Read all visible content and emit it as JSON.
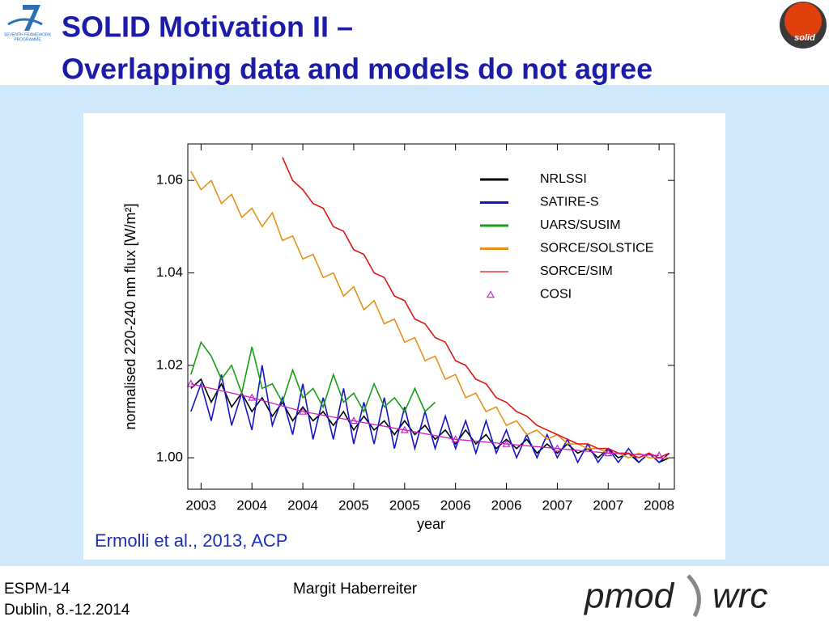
{
  "slide": {
    "title_lines": [
      "SOLID Motivation II –",
      "Overlapping data and models do not agree"
    ],
    "fp7_logo_text": [
      "SEVENTH FRAMEWORK",
      "PROGRAMME"
    ],
    "solid_logo_text": "solid",
    "citation": "Ermolli et al., 2013, ACP",
    "footer": {
      "left": [
        "ESPM-14",
        "Dublin, 8.-12.2014"
      ],
      "center": "Margit Haberreiter",
      "logo": [
        "pmod",
        "wrc"
      ]
    }
  },
  "chart_data": {
    "type": "line",
    "xlabel": "year",
    "ylabel": "normalised 220-240 nm flux [W/m²]",
    "xlim": [
      2002.87,
      2007.65
    ],
    "ylim": [
      0.9932,
      1.0679
    ],
    "xticks": [
      {
        "value": 2003.0,
        "label": "2003"
      },
      {
        "value": 2003.5,
        "label": "2004"
      },
      {
        "value": 2004.0,
        "label": "2004"
      },
      {
        "value": 2004.5,
        "label": "2005"
      },
      {
        "value": 2005.0,
        "label": "2005"
      },
      {
        "value": 2005.5,
        "label": "2006"
      },
      {
        "value": 2006.0,
        "label": "2006"
      },
      {
        "value": 2006.5,
        "label": "2007"
      },
      {
        "value": 2007.0,
        "label": "2007"
      },
      {
        "value": 2007.5,
        "label": "2008"
      }
    ],
    "yticks": [
      {
        "value": 1.0,
        "label": "1.00"
      },
      {
        "value": 1.02,
        "label": "1.02"
      },
      {
        "value": 1.04,
        "label": "1.04"
      },
      {
        "value": 1.06,
        "label": "1.06"
      }
    ],
    "legend": "upper right",
    "x": [
      2002.9,
      2003.0,
      2003.1,
      2003.2,
      2003.3,
      2003.4,
      2003.5,
      2003.6,
      2003.7,
      2003.8,
      2003.9,
      2004.0,
      2004.1,
      2004.2,
      2004.3,
      2004.4,
      2004.5,
      2004.6,
      2004.7,
      2004.8,
      2004.9,
      2005.0,
      2005.1,
      2005.2,
      2005.3,
      2005.4,
      2005.5,
      2005.6,
      2005.7,
      2005.8,
      2005.9,
      2006.0,
      2006.1,
      2006.2,
      2006.3,
      2006.4,
      2006.5,
      2006.6,
      2006.7,
      2006.8,
      2006.9,
      2007.0,
      2007.1,
      2007.2,
      2007.3,
      2007.4,
      2007.5,
      2007.6
    ],
    "series": [
      {
        "name": "NRLSSI",
        "color": "#000000",
        "values": [
          1.015,
          1.017,
          1.012,
          1.016,
          1.011,
          1.014,
          1.01,
          1.013,
          1.009,
          1.012,
          1.008,
          1.011,
          1.008,
          1.01,
          1.007,
          1.01,
          1.006,
          1.009,
          1.006,
          1.008,
          1.005,
          1.008,
          1.005,
          1.007,
          1.004,
          1.006,
          1.003,
          1.006,
          1.003,
          1.005,
          1.002,
          1.004,
          1.002,
          1.004,
          1.001,
          1.003,
          1.001,
          1.003,
          1.001,
          1.002,
          1.0,
          1.002,
          1.0,
          1.001,
          0.999,
          1.001,
          0.999,
          1.0
        ]
      },
      {
        "name": "SATIRE-S",
        "color": "#1414c8",
        "values": [
          1.01,
          1.016,
          1.008,
          1.018,
          1.007,
          1.014,
          1.006,
          1.02,
          1.007,
          1.013,
          1.005,
          1.016,
          1.004,
          1.013,
          1.004,
          1.015,
          1.003,
          1.012,
          1.003,
          1.013,
          1.002,
          1.011,
          1.002,
          1.01,
          1.002,
          1.009,
          1.002,
          1.008,
          1.001,
          1.008,
          1.001,
          1.006,
          1.0,
          1.005,
          1.0,
          1.005,
          1.0,
          1.004,
          0.999,
          1.003,
          0.999,
          1.002,
          0.999,
          1.002,
          0.999,
          1.001,
          0.999,
          1.001
        ]
      },
      {
        "name": "UARS/SUSIM",
        "color": "#16a016",
        "values": [
          1.018,
          1.025,
          1.022,
          1.017,
          1.02,
          1.014,
          1.024,
          1.015,
          1.016,
          1.012,
          1.019,
          1.013,
          1.015,
          1.011,
          1.018,
          1.012,
          1.014,
          1.01,
          1.016,
          1.011,
          1.013,
          1.01,
          1.015,
          1.01,
          1.012,
          null,
          null,
          null,
          null,
          null,
          null,
          null,
          null,
          null,
          null,
          null,
          null,
          null,
          null,
          null,
          null,
          null,
          null,
          null,
          null,
          null,
          null,
          null
        ]
      },
      {
        "name": "SORCE/SOLSTICE",
        "color": "#e8901a",
        "values": [
          1.062,
          1.058,
          1.06,
          1.055,
          1.057,
          1.052,
          1.054,
          1.05,
          1.053,
          1.047,
          1.048,
          1.043,
          1.044,
          1.039,
          1.04,
          1.035,
          1.037,
          1.032,
          1.034,
          1.029,
          1.03,
          1.025,
          1.026,
          1.021,
          1.022,
          1.017,
          1.018,
          1.013,
          1.014,
          1.01,
          1.011,
          1.007,
          1.008,
          1.005,
          1.006,
          1.004,
          1.005,
          1.003,
          1.003,
          1.002,
          1.002,
          1.001,
          1.001,
          1.0,
          1.001,
          1.0,
          1.0,
          1.0
        ]
      },
      {
        "name": "SORCE/SIM",
        "color": "#e01414",
        "values": [
          null,
          null,
          null,
          null,
          null,
          null,
          null,
          null,
          null,
          1.065,
          1.06,
          1.058,
          1.055,
          1.054,
          1.05,
          1.049,
          1.045,
          1.044,
          1.04,
          1.039,
          1.035,
          1.034,
          1.03,
          1.029,
          1.026,
          1.025,
          1.021,
          1.02,
          1.017,
          1.016,
          1.013,
          1.012,
          1.01,
          1.009,
          1.007,
          1.006,
          1.005,
          1.004,
          1.003,
          1.003,
          1.002,
          1.002,
          1.001,
          1.001,
          1.0,
          1.001,
          1.0,
          1.001
        ]
      },
      {
        "name": "COSI",
        "color": "#c820c8",
        "marker": "triangle",
        "x": [
          2002.9,
          2003.5,
          2004.0,
          2004.5,
          2005.0,
          2005.5,
          2006.0,
          2006.5,
          2007.0,
          2007.5
        ],
        "values": [
          1.016,
          1.013,
          1.01,
          1.008,
          1.006,
          1.004,
          1.003,
          1.002,
          1.001,
          1.0005
        ]
      }
    ]
  }
}
